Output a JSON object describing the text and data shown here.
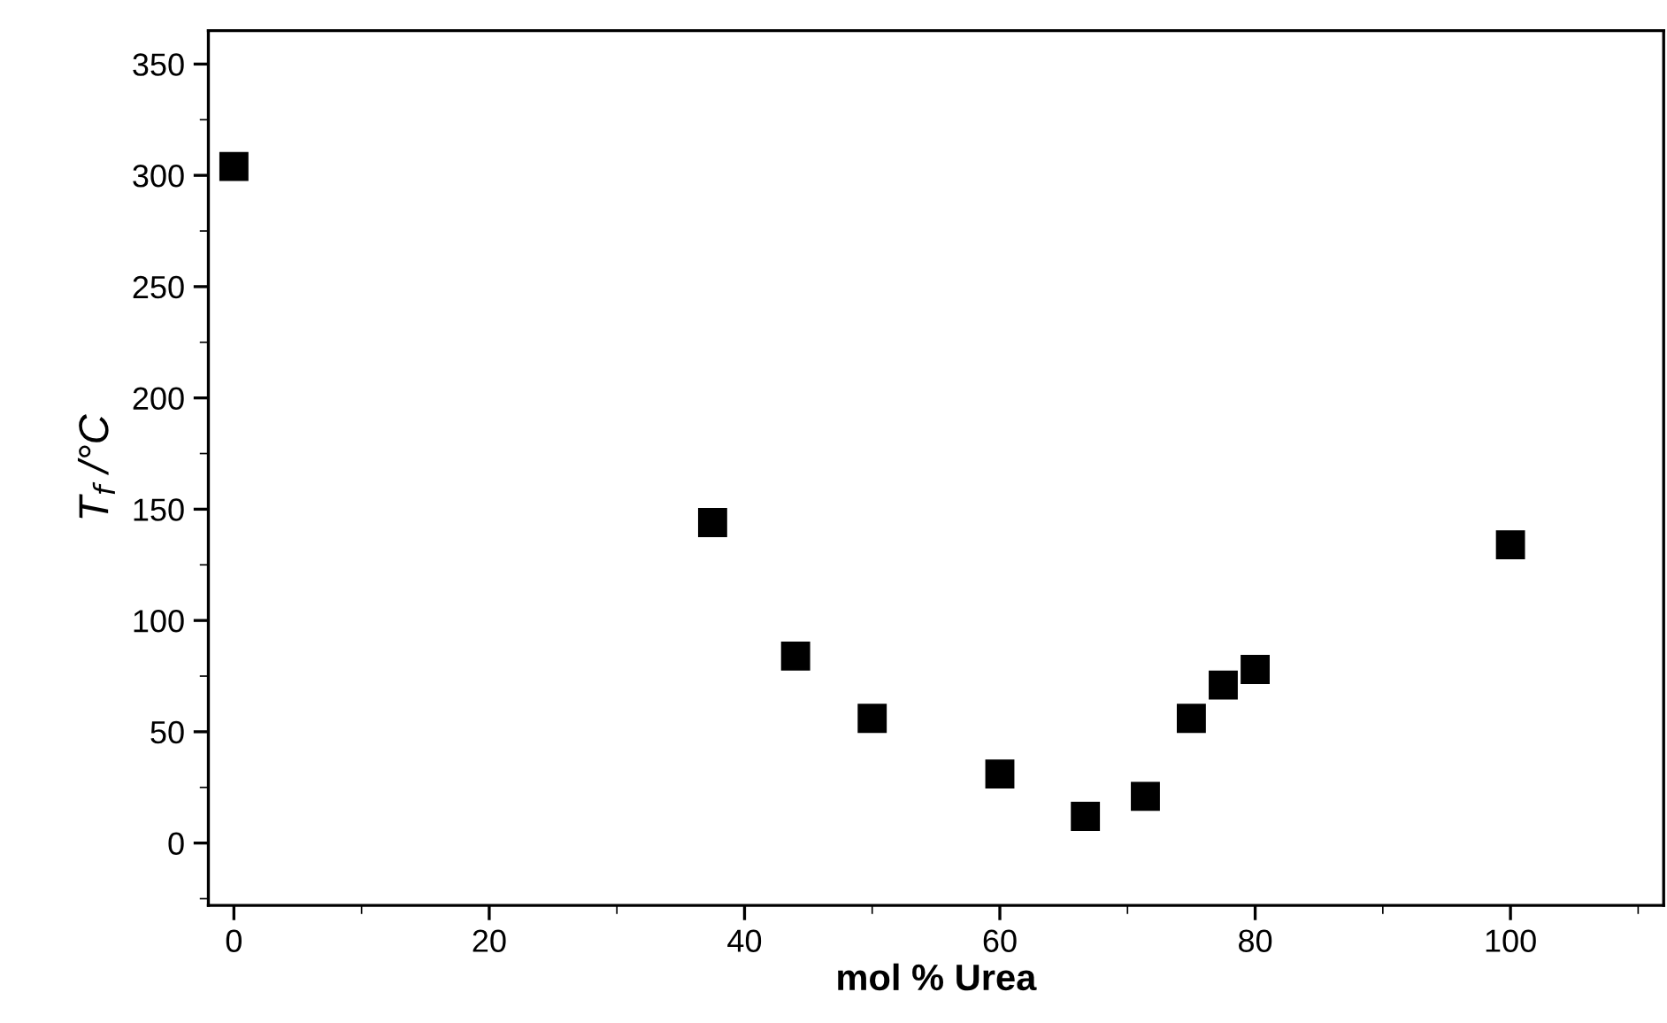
{
  "chart_data": {
    "type": "scatter",
    "xlabel": "mol % Urea",
    "ylabel": "T$_{f}$ /°C",
    "x": [
      0,
      37.5,
      44,
      50,
      60,
      66.7,
      71.4,
      75,
      77.5,
      80,
      100
    ],
    "values": [
      304,
      144,
      84,
      56,
      31,
      12,
      21,
      56,
      71,
      78,
      134
    ],
    "color": "#000000",
    "marker": "square",
    "xlim": [
      -2,
      112
    ],
    "ylim": [
      -28,
      365
    ],
    "xticks": [
      0,
      20,
      40,
      60,
      80,
      100
    ],
    "yticks": [
      0,
      50,
      100,
      150,
      200,
      250,
      300,
      350
    ],
    "grid": false,
    "legend": false
  }
}
